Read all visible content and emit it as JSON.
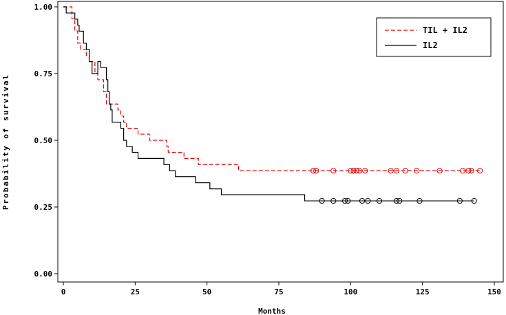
{
  "chart_data": {
    "type": "line",
    "subtype": "kaplan-meier",
    "title": "",
    "xlabel": "Months",
    "ylabel": "Probability of survival",
    "xlim": [
      -3,
      150
    ],
    "ylim": [
      0,
      1
    ],
    "x_ticks": [
      0,
      25,
      50,
      75,
      100,
      125,
      150
    ],
    "y_ticks": [
      0.0,
      0.25,
      0.5,
      0.75,
      1.0
    ],
    "x_tick_labels": [
      "0",
      "25",
      "50",
      "75",
      "100",
      "125",
      "150"
    ],
    "y_tick_labels": [
      "0.00",
      "0.25",
      "0.50",
      "0.75",
      "1.00"
    ],
    "legend_position": "top-right",
    "series": [
      {
        "name": "TIL + IL2",
        "color": "#e00000",
        "dash": "dashed",
        "steps": [
          [
            0,
            1.0
          ],
          [
            3,
            0.955
          ],
          [
            4,
            0.91
          ],
          [
            5,
            0.864
          ],
          [
            6,
            0.841
          ],
          [
            8,
            0.818
          ],
          [
            9,
            0.795
          ],
          [
            11,
            0.75
          ],
          [
            12,
            0.727
          ],
          [
            14,
            0.682
          ],
          [
            15,
            0.636
          ],
          [
            19,
            0.614
          ],
          [
            20,
            0.591
          ],
          [
            21,
            0.568
          ],
          [
            22,
            0.545
          ],
          [
            26,
            0.523
          ],
          [
            30,
            0.5
          ],
          [
            36,
            0.477
          ],
          [
            36.5,
            0.455
          ],
          [
            42,
            0.432
          ],
          [
            47,
            0.409
          ],
          [
            61,
            0.386
          ],
          [
            145,
            0.386
          ]
        ],
        "censored_x": [
          87,
          88,
          94,
          100,
          101,
          102,
          103,
          105,
          114,
          116,
          119,
          123,
          131,
          139,
          141,
          142,
          145
        ],
        "censored_y": 0.386
      },
      {
        "name": "IL2",
        "color": "#000000",
        "dash": "solid",
        "steps": [
          [
            0,
            1.0
          ],
          [
            1,
            0.977
          ],
          [
            4,
            0.954
          ],
          [
            5,
            0.931
          ],
          [
            5.5,
            0.909
          ],
          [
            7,
            0.864
          ],
          [
            8,
            0.841
          ],
          [
            9,
            0.795
          ],
          [
            10,
            0.75
          ],
          [
            12,
            0.795
          ],
          [
            13,
            0.773
          ],
          [
            15,
            0.727
          ],
          [
            15.5,
            0.682
          ],
          [
            16,
            0.636
          ],
          [
            16.5,
            0.614
          ],
          [
            17,
            0.568
          ],
          [
            20,
            0.545
          ],
          [
            21,
            0.5
          ],
          [
            22,
            0.477
          ],
          [
            24,
            0.455
          ],
          [
            26,
            0.432
          ],
          [
            35,
            0.409
          ],
          [
            37,
            0.386
          ],
          [
            39,
            0.364
          ],
          [
            42,
            0.364
          ],
          [
            46,
            0.341
          ],
          [
            51,
            0.318
          ],
          [
            55,
            0.296
          ],
          [
            84,
            0.273
          ],
          [
            143,
            0.273
          ]
        ],
        "censored_x": [
          90,
          94,
          98,
          99,
          104,
          106,
          110,
          116,
          117,
          124,
          138,
          143
        ],
        "censored_y": 0.273
      }
    ]
  }
}
